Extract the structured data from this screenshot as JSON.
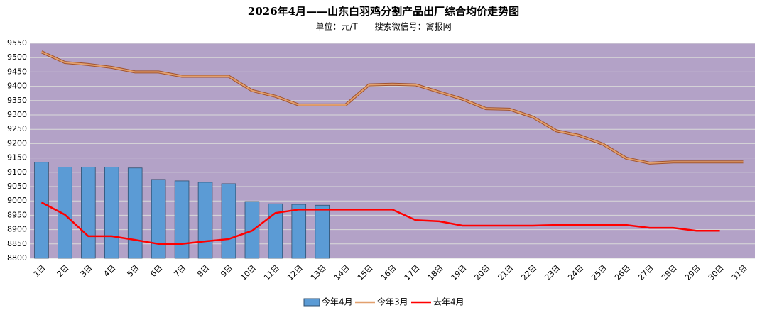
{
  "chart_data": {
    "type": "bar-line",
    "title": "2026年4月——山东白羽鸡分割产品出厂综合均价走势图",
    "subtitle": "单位：元/T　　搜索微信号：禽报网",
    "categories": [
      "1日",
      "2日",
      "3日",
      "4日",
      "5日",
      "6日",
      "7日",
      "8日",
      "9日",
      "10日",
      "11日",
      "12日",
      "13日",
      "14日",
      "15日",
      "16日",
      "17日",
      "18日",
      "19日",
      "20日",
      "21日",
      "22日",
      "23日",
      "24日",
      "25日",
      "26日",
      "27日",
      "28日",
      "29日",
      "30日",
      "31日"
    ],
    "series": [
      {
        "name": "今年4月",
        "kind": "bar",
        "color": "#5b9bd5",
        "values": [
          9135,
          9118,
          9118,
          9118,
          9115,
          9075,
          9070,
          9065,
          9060,
          8998,
          8990,
          8988,
          8985,
          null,
          null,
          null,
          null,
          null,
          null,
          null,
          null,
          null,
          null,
          null,
          null,
          null,
          null,
          null,
          null,
          null,
          null
        ]
      },
      {
        "name": "今年3月",
        "kind": "line",
        "color": "#e2a06e",
        "values": [
          9520,
          9483,
          9476,
          9466,
          9450,
          9450,
          9435,
          9435,
          9435,
          9385,
          9365,
          9335,
          9335,
          9335,
          9405,
          9407,
          9405,
          9380,
          9355,
          9322,
          9320,
          9293,
          9245,
          9228,
          9198,
          9149,
          9132,
          9136,
          9136,
          9136,
          9136
        ]
      },
      {
        "name": "去年4月",
        "kind": "line",
        "color": "#ff0000",
        "values": [
          8995,
          8952,
          8877,
          8877,
          8864,
          8850,
          8850,
          8859,
          8867,
          8896,
          8958,
          8970,
          8970,
          8970,
          8970,
          8970,
          8933,
          8929,
          8914,
          8914,
          8914,
          8914,
          8916,
          8916,
          8916,
          8916,
          8906,
          8906,
          8896,
          8896,
          null
        ]
      }
    ],
    "ylim": [
      8800,
      9550
    ],
    "yticks": [
      8800,
      8850,
      8900,
      8950,
      9000,
      9050,
      9100,
      9150,
      9200,
      9250,
      9300,
      9350,
      9400,
      9450,
      9500,
      9550
    ],
    "grid": true,
    "legend": "bottom"
  }
}
